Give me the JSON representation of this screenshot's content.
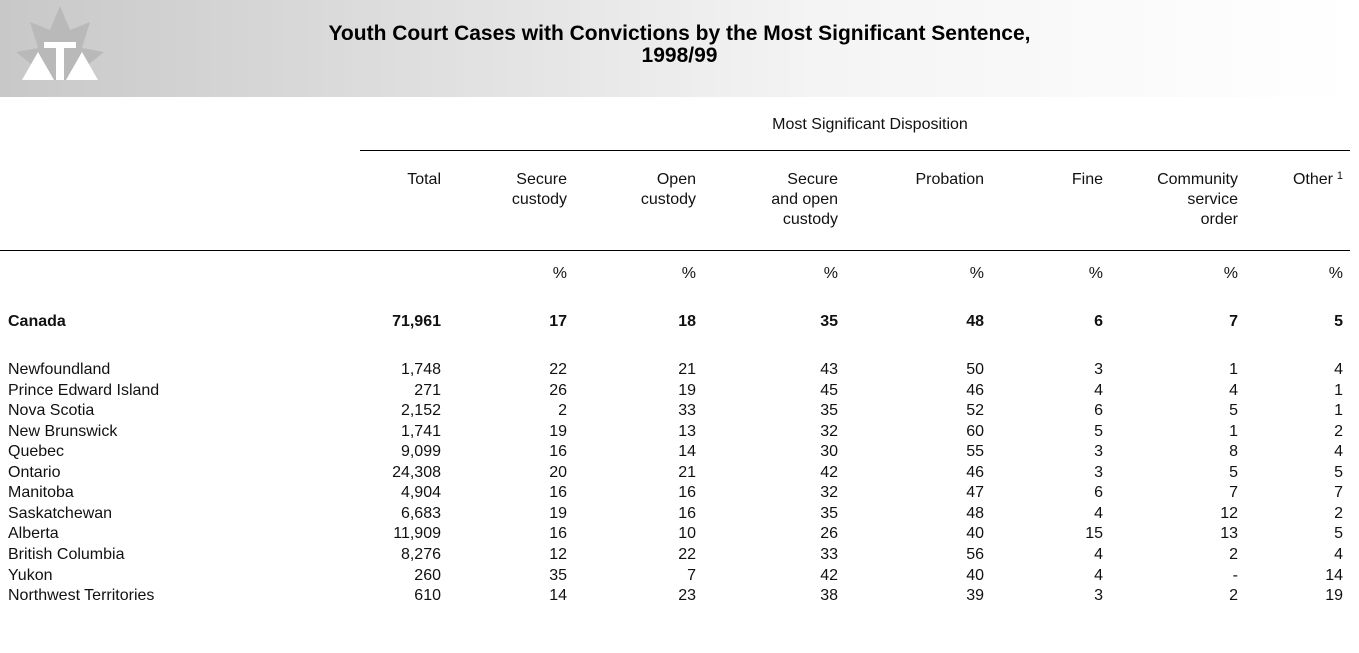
{
  "header": {
    "title": [
      "Youth Court Cases with Convictions by the Most Significant Sentence,",
      "1998/99"
    ]
  },
  "table": {
    "group_header": "Most Significant Disposition",
    "columns": [
      [
        "Total"
      ],
      [
        "Secure",
        "custody"
      ],
      [
        "Open",
        "custody"
      ],
      [
        "Secure",
        "and open",
        "custody"
      ],
      [
        "Probation"
      ],
      [
        "Fine"
      ],
      [
        "Community",
        "service",
        "order"
      ],
      [
        "Other"
      ]
    ],
    "footnote_mark": "1",
    "units": [
      "%",
      "%",
      "%",
      "%",
      "%",
      "%",
      "%"
    ],
    "total_row": {
      "name": "Canada",
      "values": [
        "71,961",
        "17",
        "18",
        "35",
        "48",
        "6",
        "7",
        "5"
      ]
    },
    "rows": [
      {
        "name": "Newfoundland",
        "values": [
          "1,748",
          "22",
          "21",
          "43",
          "50",
          "3",
          "1",
          "4"
        ]
      },
      {
        "name": "Prince Edward Island",
        "values": [
          "271",
          "26",
          "19",
          "45",
          "46",
          "4",
          "4",
          "1"
        ]
      },
      {
        "name": "Nova Scotia",
        "values": [
          "2,152",
          "2",
          "33",
          "35",
          "52",
          "6",
          "5",
          "1"
        ]
      },
      {
        "name": "New Brunswick",
        "values": [
          "1,741",
          "19",
          "13",
          "32",
          "60",
          "5",
          "1",
          "2"
        ]
      },
      {
        "name": "Quebec",
        "values": [
          "9,099",
          "16",
          "14",
          "30",
          "55",
          "3",
          "8",
          "4"
        ]
      },
      {
        "name": "Ontario",
        "values": [
          "24,308",
          "20",
          "21",
          "42",
          "46",
          "3",
          "5",
          "5"
        ]
      },
      {
        "name": "Manitoba",
        "values": [
          "4,904",
          "16",
          "16",
          "32",
          "47",
          "6",
          "7",
          "7"
        ]
      },
      {
        "name": "Saskatchewan",
        "values": [
          "6,683",
          "19",
          "16",
          "35",
          "48",
          "4",
          "12",
          "2"
        ]
      },
      {
        "name": "Alberta",
        "values": [
          "11,909",
          "16",
          "10",
          "26",
          "40",
          "15",
          "13",
          "5"
        ]
      },
      {
        "name": "British Columbia",
        "values": [
          "8,276",
          "12",
          "22",
          "33",
          "56",
          "4",
          "2",
          "4"
        ]
      },
      {
        "name": "Yukon",
        "values": [
          "260",
          "35",
          "7",
          "42",
          "40",
          "4",
          "-",
          "14"
        ]
      },
      {
        "name": "Northwest Territories",
        "values": [
          "610",
          "14",
          "23",
          "38",
          "39",
          "3",
          "2",
          "19"
        ]
      }
    ]
  }
}
